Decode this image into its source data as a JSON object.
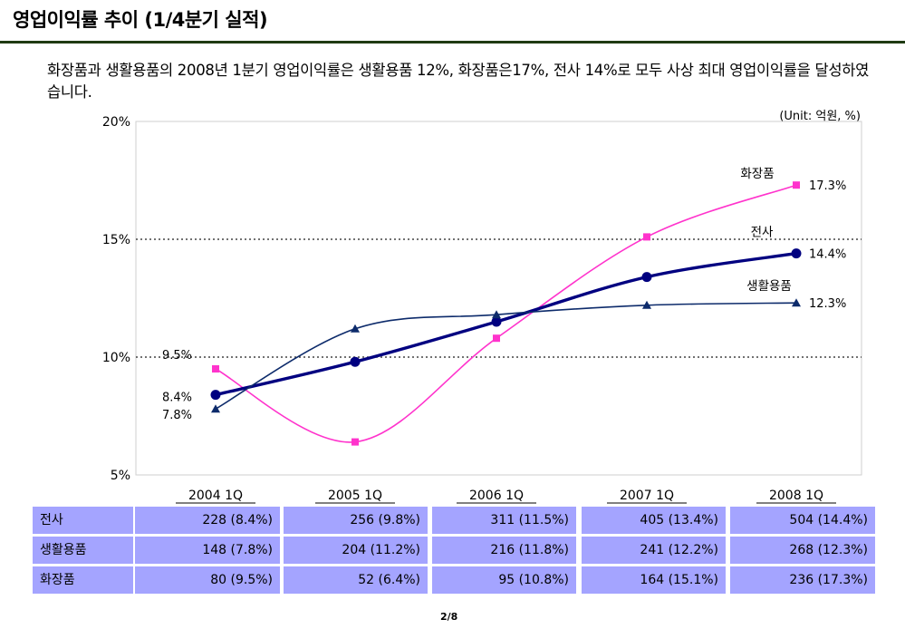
{
  "page": {
    "title": "영업이익률 추이 (1/4분기 실적)",
    "summary": "화장품과 생활용품의 2008년 1분기 영업이익률은  생활용품 12%, 화장품은17%, 전사 14%로 모두 사상 최대 영업이익률을 달성하였습니다.",
    "unit": "(Unit: 억원, %)",
    "page_number": "2/8"
  },
  "chart_data": {
    "type": "line",
    "categories": [
      "2004 1Q",
      "2005 1Q",
      "2006 1Q",
      "2007 1Q",
      "2008 1Q"
    ],
    "y_ticks": [
      "5%",
      "10%",
      "15%",
      "20%"
    ],
    "ylim": [
      5,
      20
    ],
    "dotted_gridlines": [
      10,
      15
    ],
    "series": [
      {
        "name": "화장품",
        "values": [
          9.5,
          6.4,
          10.8,
          15.1,
          17.3
        ],
        "color": "#ff33cc",
        "marker": "square",
        "first_label": "9.5%",
        "last_label": "17.3%"
      },
      {
        "name": "전사",
        "values": [
          8.4,
          9.8,
          11.5,
          13.4,
          14.4
        ],
        "color": "#000080",
        "marker": "circle",
        "first_label": "8.4%",
        "last_label": "14.4%"
      },
      {
        "name": "생활용품",
        "values": [
          7.8,
          11.2,
          11.8,
          12.2,
          12.3
        ],
        "color": "#0d2b6b",
        "marker": "triangle",
        "first_label": "7.8%",
        "last_label": "12.3%"
      }
    ]
  },
  "table": {
    "rows": [
      {
        "label": "전사",
        "values": [
          "228 (8.4%)",
          "256 (9.8%)",
          "311 (11.5%)",
          "405 (13.4%)",
          "504 (14.4%)"
        ]
      },
      {
        "label": "생활용품",
        "values": [
          "148 (7.8%)",
          "204 (11.2%)",
          "216 (11.8%)",
          "241 (12.2%)",
          "268 (12.3%)"
        ]
      },
      {
        "label": "화장품",
        "values": [
          "80 (9.5%)",
          "52 (6.4%)",
          "95 (10.8%)",
          "164 (15.1%)",
          "236 (17.3%)"
        ]
      }
    ]
  }
}
